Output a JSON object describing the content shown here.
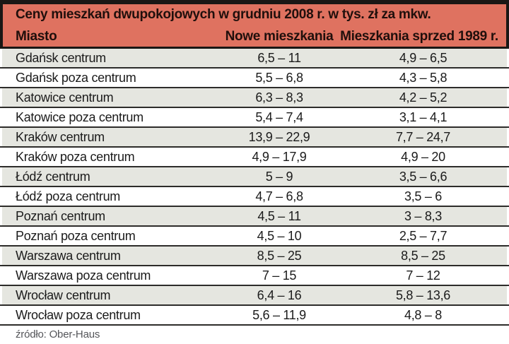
{
  "chart_data": {
    "type": "table",
    "title": "Ceny mieszkań dwupokojowych w grudniu 2008 r. w tys. zł za mkw.",
    "columns": [
      "Miasto",
      "Nowe mieszkania",
      "Mieszkania sprzed 1989 r."
    ],
    "rows": [
      {
        "city": "Gdańsk centrum",
        "new": "6,5 – 11",
        "old": "4,9 – 6,5"
      },
      {
        "city": "Gdańsk poza centrum",
        "new": "5,5 – 6,8",
        "old": "4,3 – 5,8"
      },
      {
        "city": "Katowice centrum",
        "new": "6,3 – 8,3",
        "old": "4,2 – 5,2"
      },
      {
        "city": "Katowice poza centrum",
        "new": "5,4 – 7,4",
        "old": "3,1 – 4,1"
      },
      {
        "city": "Kraków centrum",
        "new": "13,9 – 22,9",
        "old": "7,7 – 24,7"
      },
      {
        "city": "Kraków poza centrum",
        "new": "4,9 – 17,9",
        "old": "4,9 – 20"
      },
      {
        "city": "Łódź centrum",
        "new": "5 – 9",
        "old": "3,5 – 6,6"
      },
      {
        "city": "Łódź poza centrum",
        "new": "4,7 – 6,8",
        "old": "3,5 – 6"
      },
      {
        "city": "Poznań centrum",
        "new": "4,5 – 11",
        "old": "3 – 8,3"
      },
      {
        "city": "Poznań poza centrum",
        "new": "4,5 – 10",
        "old": "2,5 – 7,7"
      },
      {
        "city": "Warszawa centrum",
        "new": "8,5 – 25",
        "old": "8,5 – 25"
      },
      {
        "city": "Warszawa poza centrum",
        "new": "7 – 15",
        "old": "7 – 12"
      },
      {
        "city": "Wrocław centrum",
        "new": "6,4 – 16",
        "old": "5,8 – 13,6"
      },
      {
        "city": "Wrocław poza centrum",
        "new": "5,6 – 11,9",
        "old": "4,8 – 8"
      }
    ],
    "source": "źródło: Ober-Haus",
    "layout": {
      "shaded_rows": "even",
      "grid": "horizontal-only",
      "header_position": "top"
    }
  },
  "colors": {
    "header_bg": "#df7260",
    "frame": "#1a1715",
    "title_text": "#200f0c",
    "text": "#1b1b1b",
    "divider": "#2d2c2a",
    "shaded_row": "#e5e6e0",
    "source_text": "#55565a"
  }
}
